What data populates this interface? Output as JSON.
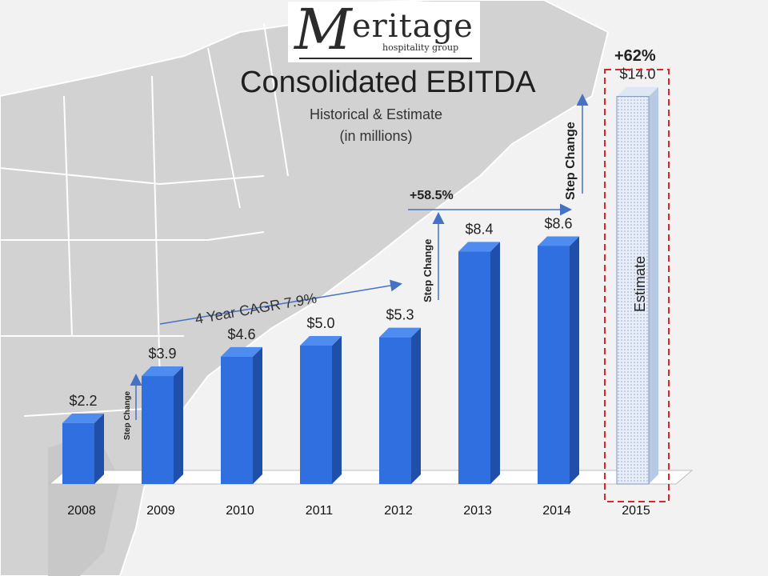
{
  "logo": {
    "initial": "M",
    "word": "eritage",
    "tagline": "hospitality group"
  },
  "header": {
    "title": "Consolidated EBITDA",
    "subtitle_line1": "Historical & Estimate",
    "subtitle_line2": "(in millions)"
  },
  "chart_data": {
    "type": "bar",
    "title": "Consolidated EBITDA",
    "subtitle": "Historical & Estimate (in millions)",
    "categories": [
      "2008",
      "2009",
      "2010",
      "2011",
      "2012",
      "2013",
      "2014",
      "2015"
    ],
    "values": [
      2.2,
      3.9,
      4.6,
      5.0,
      5.3,
      8.4,
      8.6,
      14.0
    ],
    "value_labels": [
      "$2.2",
      "$3.9",
      "$4.6",
      "$5.0",
      "$5.3",
      "$8.4",
      "$8.6",
      "$14.0"
    ],
    "ylim": [
      0,
      15
    ],
    "grid": false,
    "estimate_category": "2015",
    "estimate_label": "Estimate",
    "annotations": {
      "step_change": "Step Change",
      "cagr": "4 Year CAGR 7.9%",
      "pct_2013": "+58.5%",
      "pct_2015": "+62%"
    },
    "colors": {
      "bar": "#2f6fe0",
      "bar_side": "#1f4fa8",
      "bar_top": "#4f8cf0",
      "estimate_border": "#d9262b",
      "arrow": "#4472c4"
    }
  }
}
